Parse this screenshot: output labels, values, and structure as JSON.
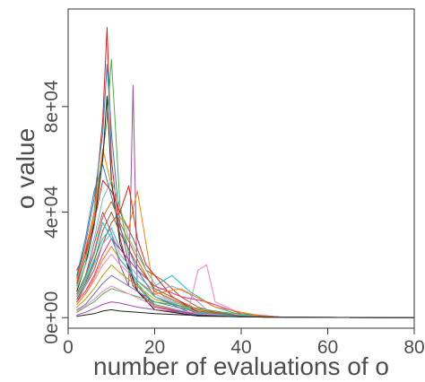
{
  "chart_data": {
    "type": "line",
    "title": "",
    "xlabel": "number of evaluations of o",
    "ylabel": "o value",
    "xlim": [
      0,
      80
    ],
    "ylim": [
      -4000,
      117000
    ],
    "xticks": [
      0,
      20,
      40,
      60,
      80
    ],
    "yticks": [
      0,
      40000,
      80000
    ],
    "xtick_labels": [
      "0",
      "20",
      "40",
      "60",
      "80"
    ],
    "ytick_labels": [
      "0e+00",
      "4e+04",
      "8e+04"
    ],
    "grid": false,
    "legend": "none",
    "palette": [
      "#e41a1c",
      "#4daf4a",
      "#377eb8",
      "#984ea3",
      "#ff7f00",
      "#a65628",
      "#f781bf",
      "#17becf",
      "#1f1f1f",
      "#8da0cb",
      "#66c2a5",
      "#e7298a",
      "#b3a200",
      "#d95f02",
      "#7570b3"
    ],
    "series": [
      {
        "x": [
          2,
          4,
          6,
          8,
          9,
          10,
          12,
          15,
          20,
          30,
          40,
          50,
          80
        ],
        "values": [
          18000,
          25000,
          40000,
          75000,
          110000,
          60000,
          30000,
          12000,
          4000,
          1000,
          300,
          100,
          50
        ]
      },
      {
        "x": [
          2,
          4,
          6,
          8,
          9,
          10,
          12,
          15,
          20,
          30,
          40,
          50,
          80
        ],
        "values": [
          12000,
          22000,
          38000,
          62000,
          75000,
          98000,
          42000,
          15000,
          5000,
          1200,
          300,
          100,
          50
        ]
      },
      {
        "x": [
          2,
          4,
          6,
          8,
          9,
          10,
          12,
          15,
          20,
          30,
          40,
          50,
          80
        ],
        "values": [
          15000,
          28000,
          45000,
          70000,
          96000,
          70000,
          35000,
          14000,
          4500,
          1000,
          300,
          100,
          50
        ]
      },
      {
        "x": [
          2,
          4,
          6,
          8,
          10,
          12,
          14,
          15,
          16,
          20,
          30,
          50,
          80
        ],
        "values": [
          9000,
          16000,
          28000,
          40000,
          32000,
          20000,
          12000,
          88000,
          10000,
          3000,
          800,
          100,
          50
        ]
      },
      {
        "x": [
          2,
          4,
          6,
          8,
          10,
          12,
          14,
          16,
          20,
          30,
          50,
          80
        ],
        "values": [
          14000,
          26000,
          40000,
          64000,
          50000,
          38000,
          34000,
          48000,
          8000,
          1500,
          100,
          50
        ]
      },
      {
        "x": [
          2,
          4,
          6,
          8,
          10,
          12,
          15,
          18,
          22,
          26,
          30,
          34,
          40,
          50,
          80
        ],
        "values": [
          6000,
          12000,
          18000,
          28000,
          36000,
          40000,
          30000,
          18000,
          14000,
          8000,
          4000,
          2000,
          600,
          100,
          50
        ]
      },
      {
        "x": [
          2,
          4,
          6,
          8,
          10,
          12,
          16,
          20,
          24,
          28,
          30,
          32,
          34,
          40,
          50,
          80
        ],
        "values": [
          5000,
          9000,
          14000,
          20000,
          24000,
          20000,
          14000,
          9000,
          6000,
          4000,
          18000,
          20000,
          6000,
          1500,
          100,
          50
        ]
      },
      {
        "x": [
          2,
          4,
          6,
          8,
          10,
          12,
          16,
          20,
          24,
          28,
          34,
          40,
          50,
          80
        ],
        "values": [
          8000,
          14000,
          22000,
          30000,
          34000,
          26000,
          18000,
          12000,
          16000,
          10000,
          4000,
          1000,
          100,
          50
        ]
      },
      {
        "x": [
          2,
          4,
          6,
          8,
          9,
          10,
          12,
          16,
          20,
          30,
          50,
          80
        ],
        "values": [
          10000,
          20000,
          35000,
          60000,
          84000,
          52000,
          28000,
          10000,
          3000,
          600,
          100,
          50
        ]
      },
      {
        "x": [
          2,
          4,
          6,
          8,
          10,
          12,
          16,
          20,
          24,
          28,
          32,
          40,
          50,
          80
        ],
        "values": [
          7000,
          12000,
          20000,
          28000,
          32000,
          24000,
          16000,
          10000,
          12000,
          9000,
          3000,
          800,
          100,
          50
        ]
      },
      {
        "x": [
          2,
          4,
          6,
          8,
          10,
          12,
          14,
          18,
          22,
          30,
          40,
          50,
          80
        ],
        "values": [
          11000,
          20000,
          30000,
          45000,
          52000,
          42000,
          30000,
          18000,
          8000,
          2000,
          400,
          100,
          50
        ]
      },
      {
        "x": [
          2,
          4,
          6,
          8,
          10,
          12,
          16,
          20,
          26,
          32,
          40,
          50,
          80
        ],
        "values": [
          6000,
          10000,
          16000,
          24000,
          30000,
          26000,
          18000,
          12000,
          8000,
          6000,
          1500,
          100,
          50
        ]
      },
      {
        "x": [
          2,
          4,
          6,
          8,
          10,
          12,
          16,
          20,
          30,
          40,
          50,
          80
        ],
        "values": [
          4000,
          7000,
          11000,
          16000,
          20000,
          17000,
          12000,
          7000,
          2500,
          600,
          100,
          50
        ]
      },
      {
        "x": [
          2,
          4,
          6,
          8,
          10,
          12,
          16,
          20,
          30,
          40,
          50,
          80
        ],
        "values": [
          9000,
          16000,
          25000,
          38000,
          44000,
          36000,
          22000,
          10000,
          2500,
          500,
          100,
          50
        ]
      },
      {
        "x": [
          2,
          4,
          6,
          8,
          10,
          12,
          16,
          20,
          30,
          40,
          50,
          80
        ],
        "values": [
          3000,
          5000,
          9000,
          13000,
          16000,
          14000,
          10000,
          6000,
          2000,
          500,
          100,
          50
        ]
      },
      {
        "x": [
          2,
          4,
          6,
          8,
          10,
          12,
          14,
          16,
          18,
          24,
          30,
          40,
          50,
          80
        ],
        "values": [
          13000,
          24000,
          36000,
          52000,
          48000,
          40000,
          50000,
          30000,
          20000,
          8000,
          2000,
          400,
          100,
          50
        ]
      },
      {
        "x": [
          2,
          4,
          6,
          8,
          10,
          12,
          16,
          20,
          28,
          36,
          44,
          50,
          80
        ],
        "values": [
          2000,
          4000,
          6000,
          9000,
          11000,
          10000,
          8000,
          6000,
          4000,
          2000,
          800,
          100,
          50
        ]
      },
      {
        "x": [
          2,
          4,
          6,
          8,
          10,
          12,
          16,
          20,
          28,
          40,
          50,
          80
        ],
        "values": [
          16000,
          30000,
          48000,
          58000,
          46000,
          34000,
          18000,
          8000,
          2000,
          400,
          100,
          50
        ]
      },
      {
        "x": [
          2,
          4,
          6,
          8,
          10,
          12,
          16,
          20,
          30,
          40,
          50,
          80
        ],
        "values": [
          1000,
          2000,
          3500,
          5000,
          6000,
          5500,
          4000,
          3000,
          1500,
          500,
          100,
          50
        ]
      },
      {
        "x": [
          2,
          4,
          6,
          8,
          10,
          12,
          16,
          20,
          26,
          34,
          44,
          50,
          80
        ],
        "values": [
          5000,
          9000,
          15000,
          22000,
          27000,
          22000,
          14000,
          9000,
          11000,
          4000,
          800,
          100,
          50
        ]
      },
      {
        "x": [
          2,
          4,
          6,
          8,
          10,
          12,
          16,
          20,
          30,
          40,
          50,
          80
        ],
        "values": [
          7000,
          13000,
          21000,
          33000,
          40000,
          32000,
          20000,
          11000,
          3000,
          600,
          100,
          50
        ]
      },
      {
        "x": [
          2,
          4,
          6,
          8,
          10,
          12,
          16,
          20,
          30,
          40,
          50,
          80
        ],
        "values": [
          2500,
          4500,
          7000,
          10000,
          12000,
          10500,
          7500,
          4500,
          1500,
          400,
          100,
          50
        ]
      },
      {
        "x": [
          2,
          4,
          6,
          8,
          10,
          12,
          16,
          20,
          30,
          40,
          50,
          80
        ],
        "values": [
          8000,
          15000,
          24000,
          36000,
          30000,
          22000,
          14000,
          8000,
          2000,
          400,
          100,
          50
        ]
      },
      {
        "x": [
          2,
          4,
          6,
          8,
          10,
          12,
          16,
          20,
          30,
          40,
          50,
          80
        ],
        "values": [
          500,
          1000,
          1500,
          2500,
          3000,
          2500,
          2000,
          1500,
          800,
          300,
          100,
          50
        ]
      }
    ]
  }
}
